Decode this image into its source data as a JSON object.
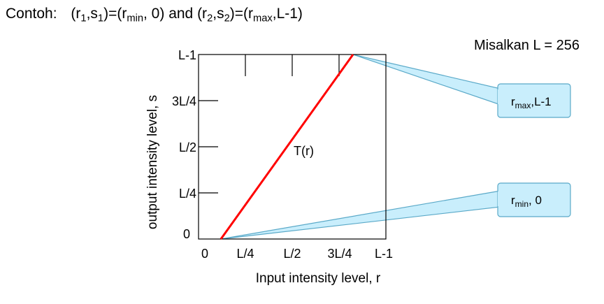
{
  "heading": {
    "label": "Contoh:",
    "r1": "r",
    "r1_sub": "1",
    "s1": "s",
    "s1_sub": "1",
    "eq1_rhs_r": "r",
    "eq1_rhs_sub": "min",
    "eq1_rhs_tail": ", 0) and (r",
    "r2_sub": "2",
    "s2": "s",
    "s2_sub": "2",
    "eq2_rhs_r": "r",
    "eq2_rhs_sub": "max",
    "eq2_rhs_tail": ",L-1)"
  },
  "note": "Misalkan L = 256",
  "plot": {
    "y_axis_label": "output intensity level, s",
    "x_axis_label": "Input intensity level, r",
    "y_ticks": [
      "0",
      "L/4",
      "L/2",
      "3L/4",
      "L-1"
    ],
    "x_ticks": [
      "0",
      "L/4",
      "L/2",
      "3L/4",
      "L-1"
    ],
    "curve_label": "T(r)",
    "line_color": "#ff0000"
  },
  "callouts": {
    "top": {
      "base": "r",
      "sub": "max",
      "tail": ",L-1"
    },
    "bottom": {
      "base": "r",
      "sub": "min",
      "tail": ", 0"
    },
    "fill_color": "#c9eefc",
    "stroke_color": "#5aa9c8"
  }
}
